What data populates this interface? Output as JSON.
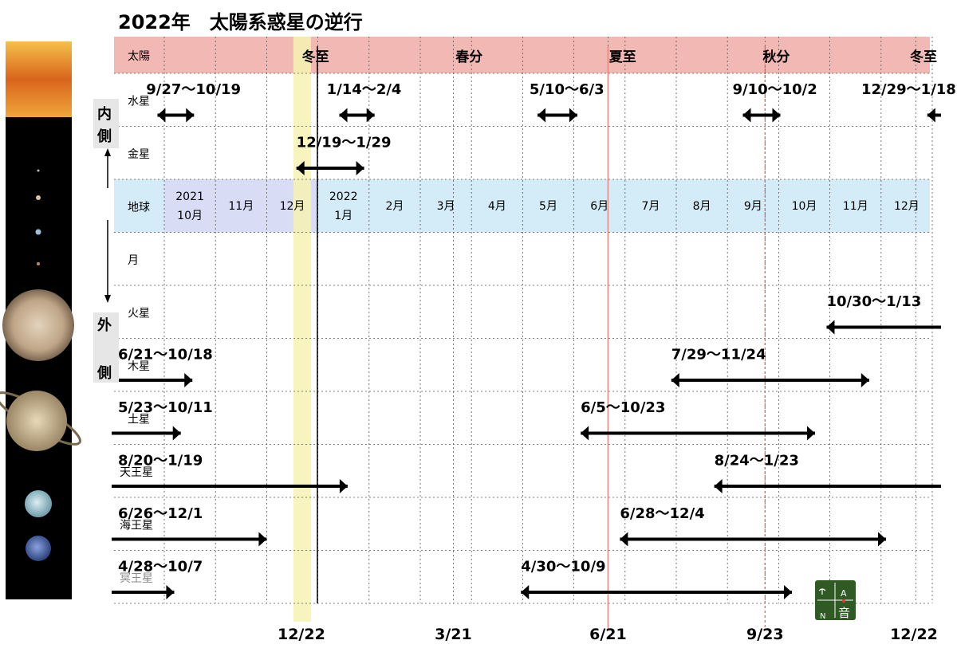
{
  "title": "2022年　太陽系惑星の逆行",
  "side_labels": {
    "inner_1": "内",
    "inner_2": "側",
    "outer_1": "外",
    "outer_2": "側"
  },
  "sun_row": {
    "label": "太陽",
    "markers": [
      {
        "label": "冬至",
        "col": 3.0
      },
      {
        "label": "春分",
        "col": 6.0
      },
      {
        "label": "夏至",
        "col": 9.0
      },
      {
        "label": "秋分",
        "col": 12.0
      },
      {
        "label": "冬至",
        "col": 15.0
      }
    ]
  },
  "earth_row": {
    "label": "地球",
    "months": [
      {
        "l1": "2021",
        "l2": "10月"
      },
      {
        "l1": "",
        "l2": "11月"
      },
      {
        "l1": "",
        "l2": "12月"
      },
      {
        "l1": "2022",
        "l2": "1月"
      },
      {
        "l1": "",
        "l2": "2月"
      },
      {
        "l1": "",
        "l2": "3月"
      },
      {
        "l1": "",
        "l2": "4月"
      },
      {
        "l1": "",
        "l2": "5月"
      },
      {
        "l1": "",
        "l2": "6月"
      },
      {
        "l1": "",
        "l2": "7月"
      },
      {
        "l1": "",
        "l2": "8月"
      },
      {
        "l1": "",
        "l2": "9月"
      },
      {
        "l1": "",
        "l2": "10月"
      },
      {
        "l1": "",
        "l2": "11月"
      },
      {
        "l1": "",
        "l2": "12月"
      }
    ]
  },
  "chart_data": {
    "type": "gantt",
    "title": "2022年　太陽系惑星の逆行",
    "x_range": [
      "2021-10-01",
      "2022-12-31"
    ],
    "reference_dates": [
      {
        "label": "12/22",
        "date": "2021-12-22"
      },
      {
        "label": "3/21",
        "date": "2022-03-21"
      },
      {
        "label": "6/21",
        "date": "2022-06-21"
      },
      {
        "label": "9/23",
        "date": "2022-09-23"
      },
      {
        "label": "12/22",
        "date": "2022-12-22"
      }
    ],
    "rows": [
      {
        "name": "水星",
        "periods": [
          {
            "label": "9/27〜10/19",
            "start": "2021-09-27",
            "end": "2021-10-19"
          },
          {
            "label": "1/14〜2/4",
            "start": "2022-01-14",
            "end": "2022-02-04"
          },
          {
            "label": "5/10〜6/3",
            "start": "2022-05-10",
            "end": "2022-06-03"
          },
          {
            "label": "9/10〜10/2",
            "start": "2022-09-10",
            "end": "2022-10-02"
          },
          {
            "label": "12/29〜1/18",
            "start": "2022-12-29",
            "end": "2023-01-18"
          }
        ]
      },
      {
        "name": "金星",
        "periods": [
          {
            "label": "12/19〜1/29",
            "start": "2021-12-19",
            "end": "2022-01-29"
          }
        ]
      },
      {
        "name": "月",
        "periods": []
      },
      {
        "name": "火星",
        "periods": [
          {
            "label": "10/30〜1/13",
            "start": "2022-10-30",
            "end": "2023-01-13"
          }
        ]
      },
      {
        "name": "木星",
        "periods": [
          {
            "label": "6/21〜10/18",
            "start": "2021-06-21",
            "end": "2021-10-18"
          },
          {
            "label": "7/29〜11/24",
            "start": "2022-07-29",
            "end": "2022-11-24"
          }
        ]
      },
      {
        "name": "土星",
        "periods": [
          {
            "label": "5/23〜10/11",
            "start": "2021-05-23",
            "end": "2021-10-11"
          },
          {
            "label": "6/5〜10/23",
            "start": "2022-06-05",
            "end": "2022-10-23"
          }
        ]
      },
      {
        "name": "天王星",
        "periods": [
          {
            "label": "8/20〜1/19",
            "start": "2021-08-20",
            "end": "2022-01-19"
          },
          {
            "label": "8/24〜1/23",
            "start": "2022-08-24",
            "end": "2023-01-23"
          }
        ]
      },
      {
        "name": "海王星",
        "periods": [
          {
            "label": "6/26〜12/1",
            "start": "2021-06-26",
            "end": "2021-12-01"
          },
          {
            "label": "6/28〜12/4",
            "start": "2022-06-28",
            "end": "2022-12-04"
          }
        ]
      },
      {
        "name": "冥王星",
        "periods": [
          {
            "label": "4/28〜10/7",
            "start": "2021-04-28",
            "end": "2021-10-07"
          },
          {
            "label": "4/30〜10/9",
            "start": "2022-04-30",
            "end": "2022-10-09"
          }
        ]
      }
    ]
  },
  "colors": {
    "sun_band": "#f2b8b3",
    "earth_band": "#d4ebf8",
    "earth_band_2021": "#d9dcf5",
    "highlight": "#f7f2b3",
    "solstice_line": "#e8877f",
    "grid": "#555555",
    "bar": "#000000"
  },
  "logo": {
    "letters": [
      "A",
      "N",
      "音"
    ],
    "bg": "#2f5a24"
  }
}
